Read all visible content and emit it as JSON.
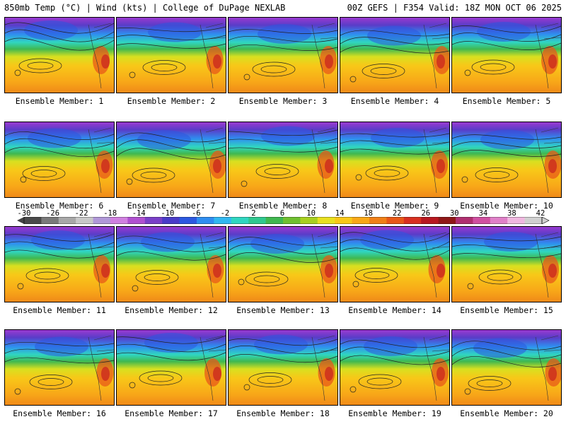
{
  "header": {
    "left_title": "850mb Temp (°C) | Wind (kts) | College of DuPage NEXLAB",
    "right_title": "00Z GEFS | F354 Valid: 18Z MON OCT 06 2025"
  },
  "members": [
    {
      "label": "Ensemble Member: 1"
    },
    {
      "label": "Ensemble Member: 2"
    },
    {
      "label": "Ensemble Member: 3"
    },
    {
      "label": "Ensemble Member: 4"
    },
    {
      "label": "Ensemble Member: 5"
    },
    {
      "label": "Ensemble Member: 6"
    },
    {
      "label": "Ensemble Member: 7"
    },
    {
      "label": "Ensemble Member: 8"
    },
    {
      "label": "Ensemble Member: 9"
    },
    {
      "label": "Ensemble Member: 10"
    },
    {
      "label": "Ensemble Member: 11"
    },
    {
      "label": "Ensemble Member: 12"
    },
    {
      "label": "Ensemble Member: 13"
    },
    {
      "label": "Ensemble Member: 14"
    },
    {
      "label": "Ensemble Member: 15"
    },
    {
      "label": "Ensemble Member: 16"
    },
    {
      "label": "Ensemble Member: 17"
    },
    {
      "label": "Ensemble Member: 18"
    },
    {
      "label": "Ensemble Member: 19"
    },
    {
      "label": "Ensemble Member: 20"
    }
  ],
  "colorbar": {
    "tick_labels": [
      "-30",
      "-26",
      "-22",
      "-18",
      "-14",
      "-10",
      "-6",
      "-2",
      "2",
      "6",
      "10",
      "14",
      "18",
      "22",
      "26",
      "30",
      "34",
      "38",
      "42"
    ],
    "colors": [
      "#4a4a4a",
      "#7a7a7a",
      "#a8a8a8",
      "#c8c8c8",
      "#b098d8",
      "#d080e0",
      "#b050d0",
      "#7a40c8",
      "#4a3cc8",
      "#2c58e0",
      "#2f8ef0",
      "#32b8f0",
      "#30d6c0",
      "#30c890",
      "#40b850",
      "#70c030",
      "#a8d020",
      "#e8e020",
      "#f8c818",
      "#f8a818",
      "#f08018",
      "#e85818",
      "#d83020",
      "#b81820",
      "#901818",
      "#b03070",
      "#d050a0",
      "#e080c8",
      "#f0b8e0",
      "#d0d0d0"
    ]
  }
}
